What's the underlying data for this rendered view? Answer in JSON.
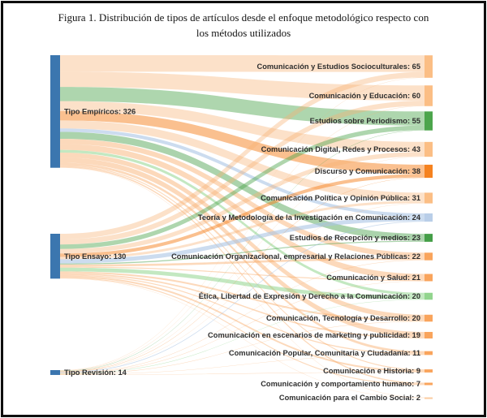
{
  "figure": {
    "title": "Figura 1. Distribución de tipos de artículos desde el enfoque metodológico respecto con los métodos utilizados"
  },
  "chart_data": {
    "type": "sankey",
    "title": "Figura 1. Distribución de tipos de artículos desde el enfoque metodológico respecto con los métodos utilizados",
    "total": 470,
    "legend_position": "none",
    "grid": false,
    "source_node_color": "#3B76AF",
    "source_nodes": [
      {
        "label": "Tipo Empíricos",
        "value": 326,
        "color": "#3B76AF"
      },
      {
        "label": "Tipo Ensayo",
        "value": 130,
        "color": "#3B76AF"
      },
      {
        "label": "Tipo Revisión",
        "value": 14,
        "color": "#3B76AF"
      }
    ],
    "target_nodes": [
      {
        "label": "Comunicación y Estudios Socioculturales",
        "value": 65,
        "color": "#FBBE85",
        "flow_color": "rgba(248,177,112,0.38)"
      },
      {
        "label": "Comunicación y Educación",
        "value": 60,
        "color": "#FBBE85",
        "flow_color": "rgba(248,177,112,0.38)"
      },
      {
        "label": "Estudios sobre Periodismo",
        "value": 55,
        "color": "#4CA54C",
        "flow_color": "rgba(76,165,76,0.45)"
      },
      {
        "label": "Comunicación Digital, Redes y Procesos",
        "value": 43,
        "color": "#FBBE85",
        "flow_color": "rgba(248,177,112,0.38)"
      },
      {
        "label": "Discurso y Comunicación",
        "value": 38,
        "color": "#F5821F",
        "flow_color": "rgba(245,130,31,0.5)"
      },
      {
        "label": "Comunicación Política y Opinión Pública",
        "value": 31,
        "color": "#FBBE85",
        "flow_color": "rgba(248,177,112,0.38)"
      },
      {
        "label": "Teoría y Metodología de la Investigación en Comunicación",
        "value": 24,
        "color": "#B9CEE8",
        "flow_color": "rgba(170,196,228,0.6)"
      },
      {
        "label": "Estudios de Recepción y medios",
        "value": 23,
        "color": "#449E47",
        "flow_color": "rgba(68,158,71,0.45)"
      },
      {
        "label": "Comunicación Organizacional, empresarial y Relaciones Públicas",
        "value": 22,
        "color": "#F9A45C",
        "flow_color": "rgba(249,164,92,0.42)"
      },
      {
        "label": "Comunicación y Salud",
        "value": 21,
        "color": "#F9A45C",
        "flow_color": "rgba(249,164,92,0.42)"
      },
      {
        "label": "Ética, Libertad de Expresión y Derecho a la Comunicación",
        "value": 20,
        "color": "#92D58E",
        "flow_color": "rgba(146,213,142,0.55)"
      },
      {
        "label": "Comunicación, Tecnología y Desarrollo",
        "value": 20,
        "color": "#F9A45C",
        "flow_color": "rgba(249,164,92,0.42)"
      },
      {
        "label": "Comunicación en escenarios de marketing y publicidad",
        "value": 19,
        "color": "#F9A45C",
        "flow_color": "rgba(249,164,92,0.42)"
      },
      {
        "label": "Comunicación Popular, Comunitaria y Ciudadanía",
        "value": 11,
        "color": "#F9A45C",
        "flow_color": "rgba(249,164,92,0.42)"
      },
      {
        "label": "Comunicación e Historia",
        "value": 9,
        "color": "#F9A45C",
        "flow_color": "rgba(249,164,92,0.42)"
      },
      {
        "label": "Comunicación y comportamiento humano",
        "value": 7,
        "color": "#F9A45C",
        "flow_color": "rgba(249,164,92,0.42)"
      },
      {
        "label": "Comunicación para el Cambio Social",
        "value": 2,
        "color": "#FBCBA0",
        "flow_color": "rgba(251,203,160,0.55)"
      }
    ],
    "links": [
      {
        "source": 0,
        "target": 0,
        "value": 48
      },
      {
        "source": 0,
        "target": 1,
        "value": 44
      },
      {
        "source": 0,
        "target": 2,
        "value": 41
      },
      {
        "source": 0,
        "target": 3,
        "value": 29
      },
      {
        "source": 0,
        "target": 4,
        "value": 27
      },
      {
        "source": 0,
        "target": 5,
        "value": 23
      },
      {
        "source": 0,
        "target": 6,
        "value": 10
      },
      {
        "source": 0,
        "target": 7,
        "value": 20
      },
      {
        "source": 0,
        "target": 8,
        "value": 15
      },
      {
        "source": 0,
        "target": 9,
        "value": 17
      },
      {
        "source": 0,
        "target": 10,
        "value": 8
      },
      {
        "source": 0,
        "target": 11,
        "value": 14
      },
      {
        "source": 0,
        "target": 12,
        "value": 15
      },
      {
        "source": 0,
        "target": 13,
        "value": 7
      },
      {
        "source": 0,
        "target": 14,
        "value": 3
      },
      {
        "source": 0,
        "target": 15,
        "value": 4
      },
      {
        "source": 0,
        "target": 16,
        "value": 1
      },
      {
        "source": 1,
        "target": 0,
        "value": 16
      },
      {
        "source": 1,
        "target": 1,
        "value": 15
      },
      {
        "source": 1,
        "target": 2,
        "value": 13
      },
      {
        "source": 1,
        "target": 3,
        "value": 13
      },
      {
        "source": 1,
        "target": 4,
        "value": 10
      },
      {
        "source": 1,
        "target": 5,
        "value": 7
      },
      {
        "source": 1,
        "target": 6,
        "value": 12
      },
      {
        "source": 1,
        "target": 7,
        "value": 3
      },
      {
        "source": 1,
        "target": 8,
        "value": 6
      },
      {
        "source": 1,
        "target": 9,
        "value": 3
      },
      {
        "source": 1,
        "target": 10,
        "value": 11
      },
      {
        "source": 1,
        "target": 11,
        "value": 5
      },
      {
        "source": 1,
        "target": 12,
        "value": 4
      },
      {
        "source": 1,
        "target": 13,
        "value": 3
      },
      {
        "source": 1,
        "target": 14,
        "value": 5
      },
      {
        "source": 1,
        "target": 15,
        "value": 3
      },
      {
        "source": 1,
        "target": 16,
        "value": 1
      },
      {
        "source": 2,
        "target": 0,
        "value": 1
      },
      {
        "source": 2,
        "target": 1,
        "value": 1
      },
      {
        "source": 2,
        "target": 2,
        "value": 1
      },
      {
        "source": 2,
        "target": 3,
        "value": 1
      },
      {
        "source": 2,
        "target": 4,
        "value": 1
      },
      {
        "source": 2,
        "target": 5,
        "value": 1
      },
      {
        "source": 2,
        "target": 6,
        "value": 2
      },
      {
        "source": 2,
        "target": 8,
        "value": 1
      },
      {
        "source": 2,
        "target": 9,
        "value": 1
      },
      {
        "source": 2,
        "target": 10,
        "value": 1
      },
      {
        "source": 2,
        "target": 11,
        "value": 1
      },
      {
        "source": 2,
        "target": 13,
        "value": 1
      },
      {
        "source": 2,
        "target": 14,
        "value": 1
      }
    ]
  }
}
